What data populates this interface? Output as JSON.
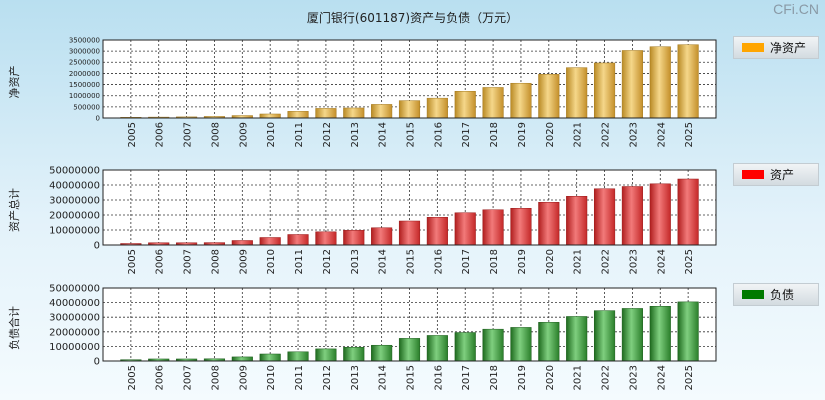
{
  "title": "厦门银行(601187)资产与负债（万元）",
  "watermark": "CFi.CN",
  "colors": {
    "gold": "#d9a53a",
    "red": "#d83a3a",
    "green": "#2f8a2f"
  },
  "chart_data": [
    {
      "type": "bar",
      "name": "净资产",
      "ylabel": "净资产",
      "legend": "净资产",
      "legend_color": "#ffa500",
      "color": "gold",
      "categories": [
        "2005",
        "2006",
        "2007",
        "2008",
        "2009",
        "2010",
        "2011",
        "2012",
        "2013",
        "2014",
        "2015",
        "2016",
        "2017",
        "2018",
        "2019",
        "2020",
        "2021",
        "2022",
        "2023",
        "2024",
        "2025"
      ],
      "values": [
        30000,
        40000,
        50000,
        70000,
        110000,
        180000,
        300000,
        430000,
        450000,
        610000,
        780000,
        890000,
        1200000,
        1370000,
        1560000,
        1960000,
        2260000,
        2470000,
        3030000,
        3200000,
        3290000
      ],
      "ylim": [
        0,
        3500000
      ],
      "yticks": [
        "0",
        "500000",
        "1000000",
        "1500000",
        "2000000",
        "2500000",
        "3000000",
        "3500000"
      ]
    },
    {
      "type": "bar",
      "name": "资产总计",
      "ylabel": "资产总计",
      "legend": "资产",
      "legend_color": "#ff0000",
      "color": "red",
      "categories": [
        "2005",
        "2006",
        "2007",
        "2008",
        "2009",
        "2010",
        "2011",
        "2012",
        "2013",
        "2014",
        "2015",
        "2016",
        "2017",
        "2018",
        "2019",
        "2020",
        "2021",
        "2022",
        "2023",
        "2024",
        "2025"
      ],
      "values": [
        1000000,
        1500000,
        1500000,
        1600000,
        3000000,
        5000000,
        7000000,
        8800000,
        9800000,
        11500000,
        16000000,
        18500000,
        21500000,
        23500000,
        24500000,
        28500000,
        32500000,
        37500000,
        39000000,
        40800000,
        44000000
      ],
      "ylim": [
        0,
        50000000
      ],
      "yticks": [
        "0",
        "10000000",
        "20000000",
        "30000000",
        "40000000",
        "50000000"
      ]
    },
    {
      "type": "bar",
      "name": "负债合计",
      "ylabel": "负债合计",
      "legend": "负债",
      "legend_color": "#007a00",
      "color": "green",
      "categories": [
        "2005",
        "2006",
        "2007",
        "2008",
        "2009",
        "2010",
        "2011",
        "2012",
        "2013",
        "2014",
        "2015",
        "2016",
        "2017",
        "2018",
        "2019",
        "2020",
        "2021",
        "2022",
        "2023",
        "2024",
        "2025"
      ],
      "values": [
        900000,
        1400000,
        1400000,
        1500000,
        2800000,
        4800000,
        6300000,
        8300000,
        9400000,
        10800000,
        15500000,
        17500000,
        19500000,
        21800000,
        23000000,
        26500000,
        30500000,
        34500000,
        36000000,
        37500000,
        40500000
      ],
      "ylim": [
        0,
        50000000
      ],
      "yticks": [
        "0",
        "10000000",
        "20000000",
        "30000000",
        "40000000",
        "50000000"
      ]
    }
  ]
}
